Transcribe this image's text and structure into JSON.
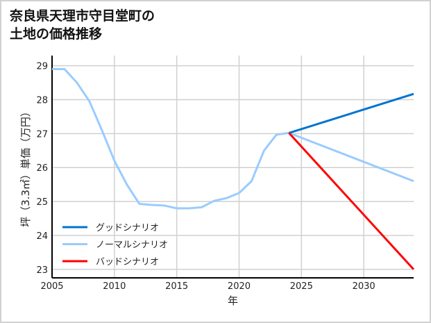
{
  "chart_data": {
    "type": "line",
    "title_lines": [
      "奈良県天理市守目堂町の",
      "土地の価格推移"
    ],
    "xlabel": "年",
    "ylabel": "坪（3.3㎡）単価（万円）",
    "xlim": [
      2005,
      2034
    ],
    "ylim": [
      22.75,
      29.3
    ],
    "xticks": [
      2005,
      2010,
      2015,
      2020,
      2025,
      2030
    ],
    "yticks": [
      23,
      24,
      25,
      26,
      27,
      28,
      29
    ],
    "grid": true,
    "legend_position": "bottom-left",
    "series": [
      {
        "name": "グッドシナリオ",
        "color": "#0074d0",
        "x": [
          2024,
          2034
        ],
        "y": [
          27.02,
          28.17
        ]
      },
      {
        "name": "ノーマルシナリオ",
        "color": "#99ccff",
        "x": [
          2005,
          2006,
          2007,
          2008,
          2009,
          2010,
          2011,
          2012,
          2013,
          2014,
          2015,
          2016,
          2017,
          2018,
          2019,
          2020,
          2021,
          2022,
          2023,
          2024,
          2034
        ],
        "y": [
          28.9,
          28.9,
          28.5,
          27.95,
          27.1,
          26.2,
          25.5,
          24.93,
          24.9,
          24.88,
          24.8,
          24.8,
          24.83,
          25.02,
          25.1,
          25.25,
          25.6,
          26.5,
          26.97,
          27.02,
          25.6
        ]
      },
      {
        "name": "バッドシナリオ",
        "color": "#ff0000",
        "x": [
          2024,
          2034
        ],
        "y": [
          27.02,
          23.0
        ]
      }
    ]
  }
}
